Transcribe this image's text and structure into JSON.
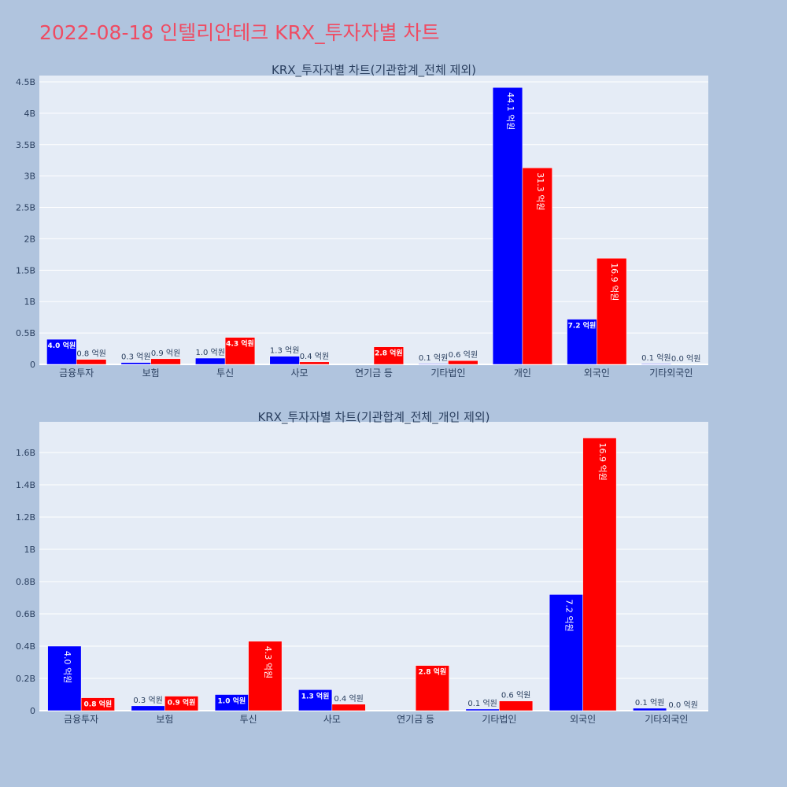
{
  "title": "2022-08-18 인텔리안테크 KRX_투자자별 차트",
  "colors": {
    "buy": "#0000ff",
    "sell": "#ff0000",
    "plot_bg": "#e5ecf6",
    "page_bg": "#b0c4de",
    "title": "#ef4b62"
  },
  "chart_data": [
    {
      "type": "bar",
      "title": "KRX_투자자별 차트(기관합계_전체 제외)",
      "categories": [
        "금융투자",
        "보험",
        "투신",
        "사모",
        "연기금 등",
        "기타법인",
        "개인",
        "외국인",
        "기타외국인"
      ],
      "yticks": [
        "0",
        "0.5B",
        "1B",
        "1.5B",
        "2B",
        "2.5B",
        "3B",
        "3.5B",
        "4B",
        "4.5B"
      ],
      "ylim": [
        0,
        4.6
      ],
      "series": [
        {
          "values": [
            0.4,
            0.03,
            0.1,
            0.13,
            0.0,
            0.01,
            4.41,
            0.72,
            0.01
          ],
          "labels": [
            "4.0 억원",
            "0.3 억원",
            "1.0 억원",
            "1.3 억원",
            "",
            "0.1 억원",
            "44.1 억원",
            "7.2 억원",
            "0.1 억원"
          ]
        },
        {
          "values": [
            0.08,
            0.09,
            0.43,
            0.04,
            0.28,
            0.06,
            3.13,
            1.69,
            0.0
          ],
          "labels": [
            "0.8 억원",
            "0.9 억원",
            "4.3 억원",
            "0.4 억원",
            "2.8 억원",
            "0.6 억원",
            "31.3 억원",
            "16.9 억원",
            "0.0 억원"
          ]
        }
      ]
    },
    {
      "type": "bar",
      "title": "KRX_투자자별 차트(기관합계_전체_개인 제외)",
      "categories": [
        "금융투자",
        "보험",
        "투신",
        "사모",
        "연기금 등",
        "기타법인",
        "외국인",
        "기타외국인"
      ],
      "yticks": [
        "0",
        "0.2B",
        "0.4B",
        "0.6B",
        "0.8B",
        "1B",
        "1.2B",
        "1.4B",
        "1.6B"
      ],
      "ylim": [
        0,
        1.79
      ],
      "series": [
        {
          "values": [
            0.4,
            0.03,
            0.1,
            0.13,
            0.0,
            0.01,
            0.72,
            0.015
          ],
          "labels": [
            "4.0 억원",
            "0.3 억원",
            "1.0 억원",
            "1.3 억원",
            "",
            "0.1 억원",
            "7.2 억원",
            "0.1 억원"
          ]
        },
        {
          "values": [
            0.08,
            0.09,
            0.43,
            0.04,
            0.28,
            0.06,
            1.69,
            0.0
          ],
          "labels": [
            "0.8 억원",
            "0.9 억원",
            "4.3 억원",
            "0.4 억원",
            "2.8 억원",
            "0.6 억원",
            "16.9 억원",
            "0.0 억원"
          ]
        }
      ]
    }
  ]
}
